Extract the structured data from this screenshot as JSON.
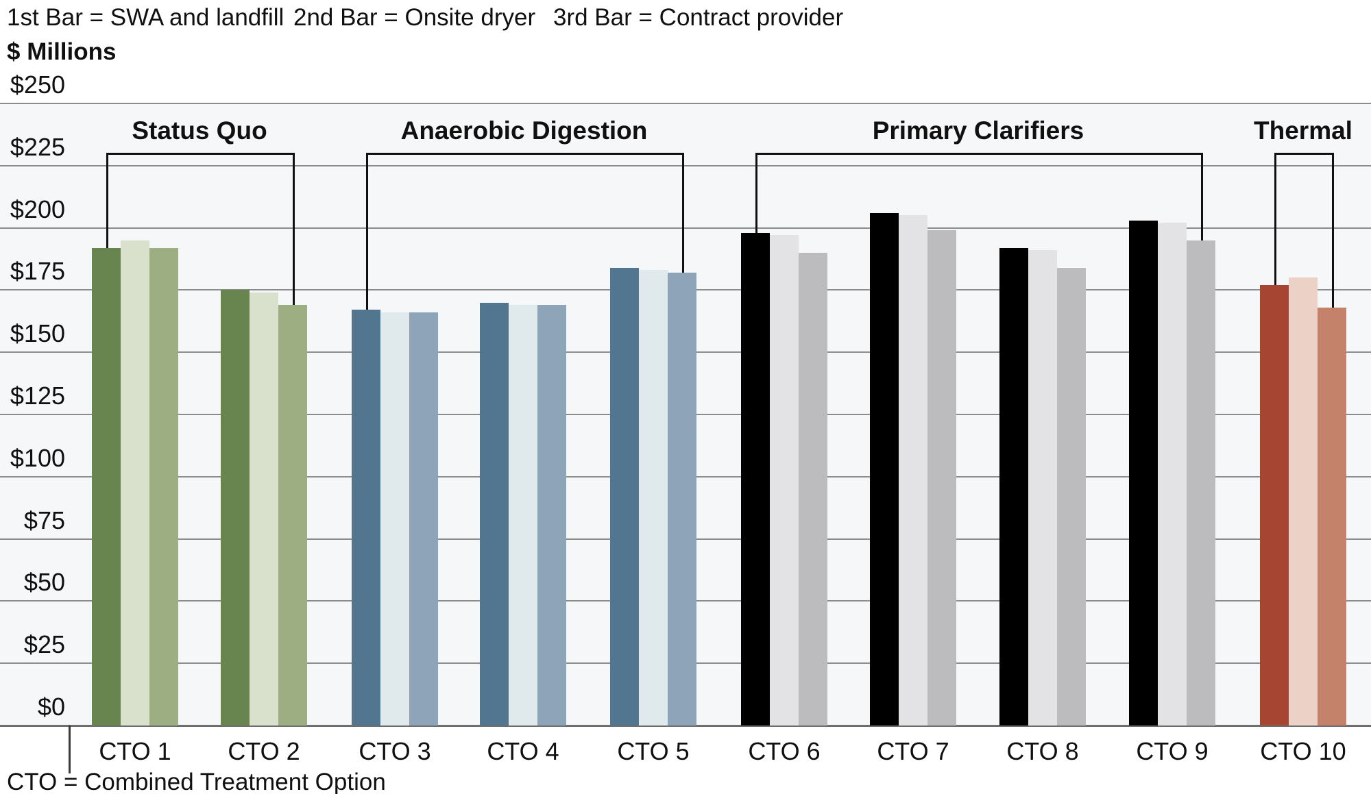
{
  "legend": {
    "items": [
      "1st Bar = SWA and landfill",
      "2nd Bar = Onsite dryer",
      "3rd Bar = Contract provider"
    ]
  },
  "y_axis": {
    "title": "$ Millions",
    "tick_labels": [
      "$250",
      "$225",
      "$200",
      "$175",
      "$150",
      "$125",
      "$100",
      "$75",
      "$50",
      "$25",
      "$0"
    ]
  },
  "footnote": "CTO = Combined Treatment Option",
  "chart_data": {
    "type": "bar",
    "title": "",
    "xlabel": "",
    "ylabel": "$ Millions",
    "ylim": [
      0,
      250
    ],
    "y_tick_step": 25,
    "grid": true,
    "legend_position": "top",
    "categories": [
      "CTO 1",
      "CTO 2",
      "CTO 3",
      "CTO 4",
      "CTO 5",
      "CTO 6",
      "CTO 7",
      "CTO 8",
      "CTO 9",
      "CTO 10"
    ],
    "series": [
      {
        "name": "SWA and landfill",
        "values": [
          192,
          175,
          167,
          170,
          184,
          198,
          206,
          192,
          203,
          177
        ]
      },
      {
        "name": "Onsite dryer",
        "values": [
          195,
          174,
          166,
          169,
          183,
          197,
          205,
          191,
          202,
          180
        ]
      },
      {
        "name": "Contract provider",
        "values": [
          192,
          169,
          166,
          169,
          182,
          190,
          199,
          184,
          195,
          168
        ]
      }
    ],
    "groups": [
      {
        "label": "Status Quo",
        "categories": [
          "CTO 1",
          "CTO 2"
        ],
        "colors": [
          "#69854f",
          "#d9e1cc",
          "#9daf82"
        ]
      },
      {
        "label": "Anaerobic Digestion",
        "categories": [
          "CTO 3",
          "CTO 4",
          "CTO 5"
        ],
        "colors": [
          "#527590",
          "#e0e9ec",
          "#8ea4b9"
        ]
      },
      {
        "label": "Primary Clarifiers",
        "categories": [
          "CTO 6",
          "CTO 7",
          "CTO 8",
          "CTO 9"
        ],
        "colors": [
          "#000000",
          "#e3e3e5",
          "#bcbcbe"
        ]
      },
      {
        "label": "Thermal",
        "categories": [
          "CTO 10"
        ],
        "colors": [
          "#a64531",
          "#ecd2c6",
          "#c5826b"
        ]
      }
    ],
    "annotations": [
      "CTO = Combined Treatment Option"
    ]
  }
}
